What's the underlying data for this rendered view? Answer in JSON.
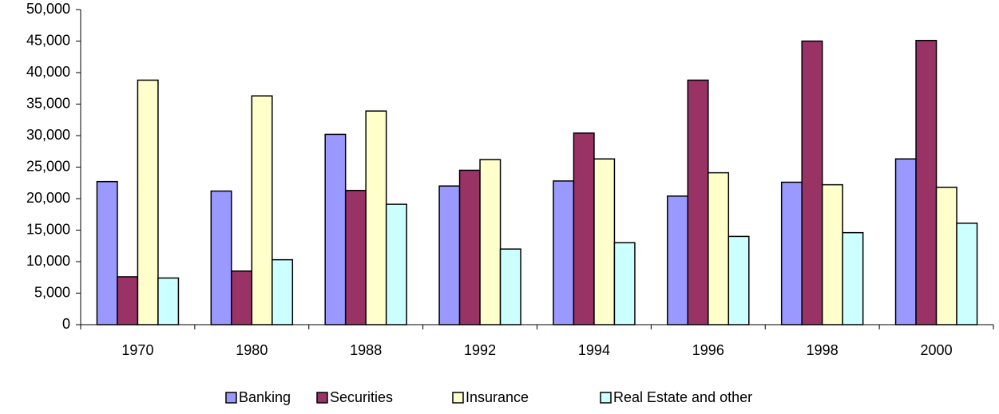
{
  "chart_data": {
    "type": "bar",
    "categories": [
      "1970",
      "1980",
      "1988",
      "1992",
      "1994",
      "1996",
      "1998",
      "2000"
    ],
    "series": [
      {
        "name": "Banking",
        "color": "#9999ff",
        "values": [
          22700,
          21200,
          30200,
          22000,
          22800,
          20400,
          22600,
          26300
        ]
      },
      {
        "name": "Securities",
        "color": "#993366",
        "values": [
          7600,
          8500,
          21300,
          24500,
          30400,
          38800,
          45000,
          45100
        ]
      },
      {
        "name": "Insurance",
        "color": "#ffffcc",
        "values": [
          38800,
          36300,
          33900,
          26200,
          26300,
          24100,
          22200,
          21800
        ]
      },
      {
        "name": "Real Estate and other",
        "color": "#ccffff",
        "values": [
          7400,
          10300,
          19100,
          12000,
          13000,
          14000,
          14600,
          16100
        ]
      }
    ],
    "ylim": [
      0,
      50000
    ],
    "yticks": [
      0,
      {
        "value": 5000,
        "label": "5,000"
      },
      {
        "value": 10000,
        "label": "10,000"
      },
      {
        "value": 15000,
        "label": "15,000"
      },
      {
        "value": 20000,
        "label": "20,000"
      },
      {
        "value": 25000,
        "label": "25,000"
      },
      {
        "value": 30000,
        "label": "30,000"
      },
      {
        "value": 35000,
        "label": "35,000"
      },
      {
        "value": 40000,
        "label": "40,000"
      },
      {
        "value": 45000,
        "label": "45,000"
      },
      {
        "value": 50000,
        "label": "50,000"
      }
    ],
    "grid": false,
    "legend": "bottom"
  }
}
